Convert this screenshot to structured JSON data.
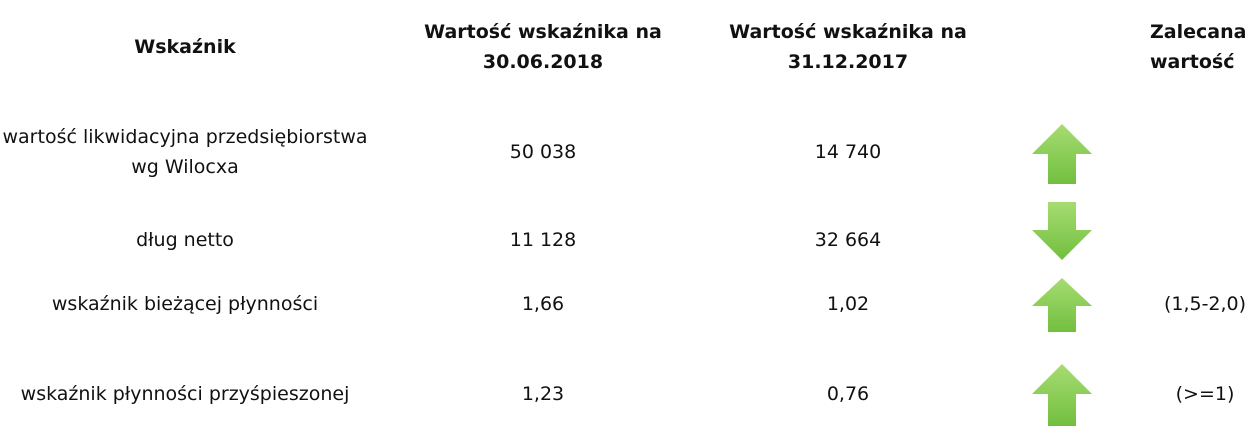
{
  "header": {
    "indicator": "Wskaźnik",
    "value_2018": "Wartość wskaźnika na 30.06.2018",
    "value_2017": "Wartość wskaźnika na 31.12.2017",
    "recommended": "Zalecana wartość"
  },
  "rows": [
    {
      "label": "wartość likwidacyjna przedsiębiorstwa wg Wilocxa",
      "value_2018": "50 038",
      "value_2017": "14 740"
    },
    {
      "label": "dług netto",
      "value_2018": "11 128",
      "value_2017": "32 664"
    },
    {
      "label": "wskaźnik bieżącej płynności",
      "value_2018": "1,66",
      "value_2017": "1,02",
      "recommended": "(1,5-2,0)"
    },
    {
      "label": "wskaźnik płynności przyśpieszonej",
      "value_2018": "1,23",
      "value_2017": "0,76",
      "recommended": "(>=1)"
    }
  ]
}
